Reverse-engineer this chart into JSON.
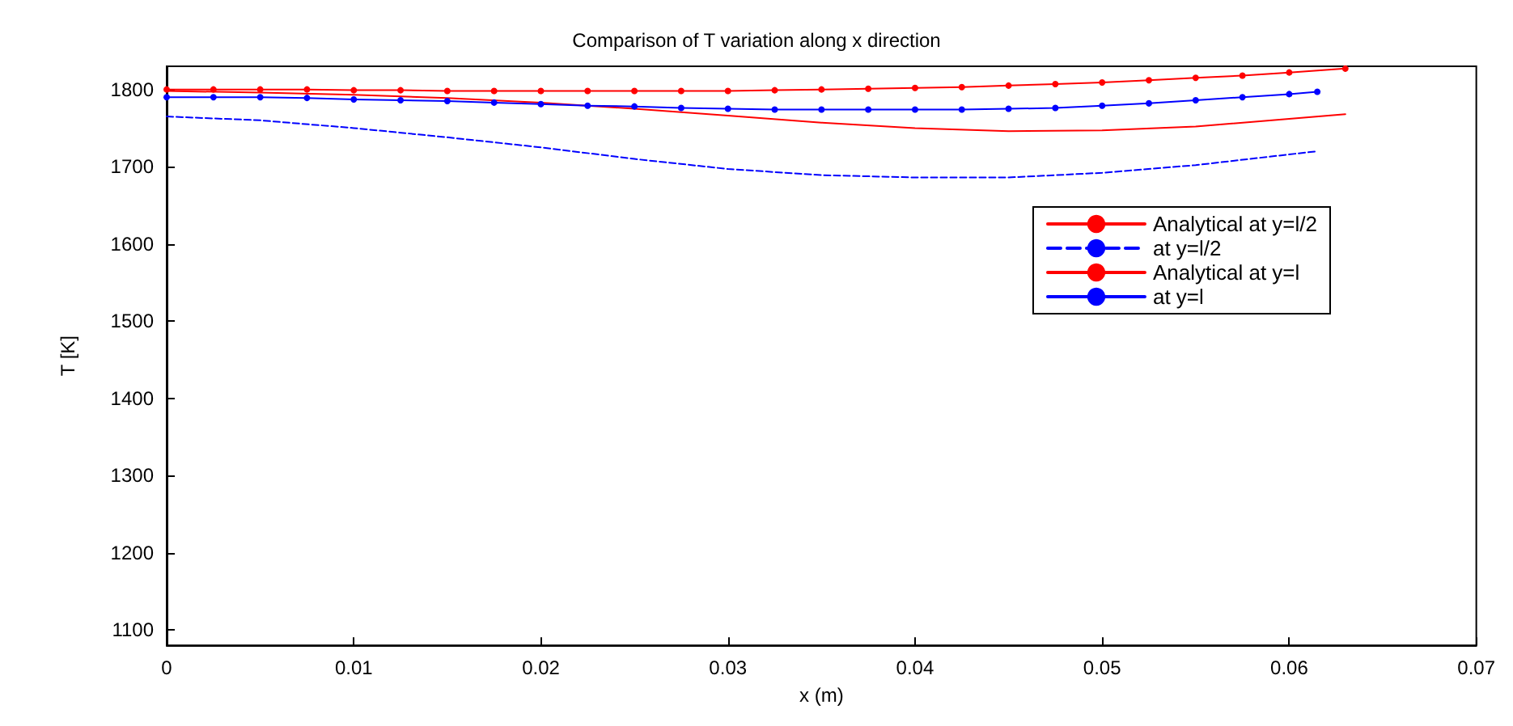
{
  "chart_data": {
    "type": "line",
    "title": "Comparison of T variation along x direction",
    "xlabel": "x (m)",
    "ylabel": "T [K]",
    "xlim": [
      0,
      0.07
    ],
    "xticks": [
      0,
      0.01,
      0.02,
      0.03,
      0.04,
      0.05,
      0.06,
      0.07
    ],
    "ylim": [
      1080,
      1830
    ],
    "yticks": [
      1100,
      1200,
      1300,
      1400,
      1500,
      1600,
      1700,
      1800
    ],
    "grid": false,
    "legend": "right",
    "series": [
      {
        "name": "Analytical at y=l/2",
        "color": "#ff0000",
        "marker": "none",
        "line_style": "solid",
        "x": [
          0,
          0.005,
          0.01,
          0.015,
          0.02,
          0.025,
          0.03,
          0.035,
          0.04,
          0.045,
          0.05,
          0.055,
          0.06,
          0.063
        ],
        "values": [
          1798,
          1796,
          1793,
          1789,
          1783,
          1775,
          1766,
          1757,
          1750,
          1746,
          1747,
          1752,
          1762,
          1768
        ]
      },
      {
        "name": "at y=l/2",
        "color": "#0000ff",
        "marker": "none",
        "line_style": "dashed",
        "x": [
          0,
          0.005,
          0.01,
          0.015,
          0.02,
          0.025,
          0.03,
          0.035,
          0.04,
          0.045,
          0.05,
          0.055,
          0.0615
        ],
        "values": [
          1765,
          1760,
          1750,
          1738,
          1725,
          1710,
          1697,
          1689,
          1686,
          1686,
          1692,
          1702,
          1720
        ]
      },
      {
        "name": "Analytical at y=l",
        "color": "#ff0000",
        "marker": "circle",
        "line_style": "solid",
        "x": [
          0,
          0.0025,
          0.005,
          0.0075,
          0.01,
          0.0125,
          0.015,
          0.0175,
          0.02,
          0.0225,
          0.025,
          0.0275,
          0.03,
          0.0325,
          0.035,
          0.0375,
          0.04,
          0.0425,
          0.045,
          0.0475,
          0.05,
          0.0525,
          0.055,
          0.0575,
          0.06,
          0.063
        ],
        "values": [
          1800,
          1800,
          1800,
          1800,
          1799,
          1799,
          1798,
          1798,
          1798,
          1798,
          1798,
          1798,
          1798,
          1799,
          1800,
          1801,
          1802,
          1803,
          1805,
          1807,
          1809,
          1812,
          1815,
          1818,
          1822,
          1827
        ]
      },
      {
        "name": "at y=l",
        "color": "#0000ff",
        "marker": "circle",
        "line_style": "solid",
        "x": [
          0,
          0.0025,
          0.005,
          0.0075,
          0.01,
          0.0125,
          0.015,
          0.0175,
          0.02,
          0.0225,
          0.025,
          0.0275,
          0.03,
          0.0325,
          0.035,
          0.0375,
          0.04,
          0.0425,
          0.045,
          0.0475,
          0.05,
          0.0525,
          0.055,
          0.0575,
          0.06,
          0.0615
        ],
        "values": [
          1790,
          1790,
          1790,
          1789,
          1787,
          1786,
          1785,
          1783,
          1781,
          1779,
          1778,
          1776,
          1775,
          1774,
          1774,
          1774,
          1774,
          1774,
          1775,
          1776,
          1779,
          1782,
          1786,
          1790,
          1794,
          1797
        ]
      }
    ]
  }
}
